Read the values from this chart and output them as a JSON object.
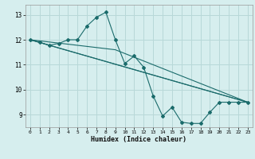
{
  "xlabel": "Humidex (Indice chaleur)",
  "bg_color": "#d6eeee",
  "grid_color": "#b8d8d8",
  "line_color": "#1a6b6b",
  "xlim": [
    -0.5,
    23.5
  ],
  "ylim": [
    8.5,
    13.4
  ],
  "yticks": [
    9,
    10,
    11,
    12,
    13
  ],
  "xticks": [
    0,
    1,
    2,
    3,
    4,
    5,
    6,
    7,
    8,
    9,
    10,
    11,
    12,
    13,
    14,
    15,
    16,
    17,
    18,
    19,
    20,
    21,
    22,
    23
  ],
  "lines": [
    {
      "x": [
        0,
        1,
        2,
        3,
        4,
        5,
        6,
        7,
        8,
        9,
        10,
        11,
        12,
        13,
        14,
        15,
        16,
        17,
        18,
        19,
        20,
        21,
        22,
        23
      ],
      "y": [
        12.0,
        11.9,
        11.78,
        11.85,
        12.0,
        12.0,
        12.55,
        12.9,
        13.1,
        12.0,
        11.05,
        11.35,
        10.9,
        9.75,
        8.95,
        9.3,
        8.7,
        8.65,
        8.65,
        9.1,
        9.5,
        9.5,
        9.5,
        9.5
      ],
      "markers": true
    },
    {
      "x": [
        0,
        23
      ],
      "y": [
        12.0,
        9.5
      ],
      "markers": false
    },
    {
      "x": [
        0,
        2,
        23
      ],
      "y": [
        12.0,
        11.78,
        9.5
      ],
      "markers": false
    },
    {
      "x": [
        0,
        9,
        23
      ],
      "y": [
        12.0,
        11.6,
        9.5
      ],
      "markers": false
    }
  ]
}
